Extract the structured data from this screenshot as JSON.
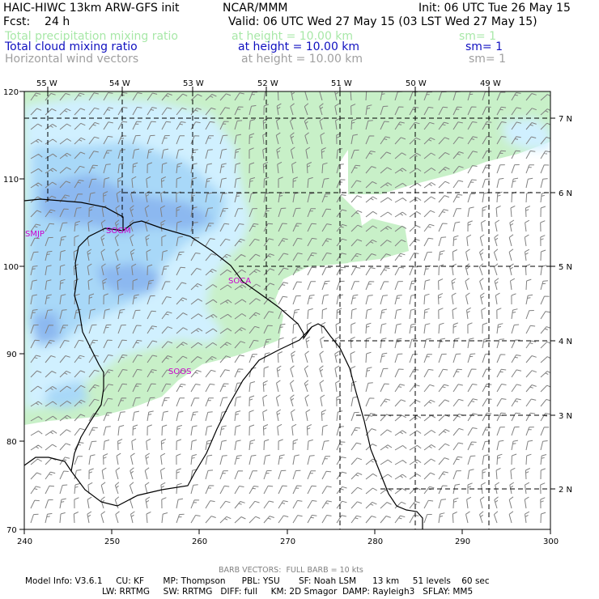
{
  "header": {
    "model": "HAIC-HIWC 13km ARW-GFS init",
    "org": "NCAR/MMM",
    "init": "Init: 06 UTC Tue 26 May 15",
    "fcst": "Fcst:    24 h",
    "valid": "Valid: 06 UTC Wed 27 May 15 (03 LST Wed 27 May 15)"
  },
  "fields": [
    {
      "name": "Total precipitation mixing ratio",
      "height": "at height = 10.00 km",
      "sm": "sm= 1",
      "color": "#a8e8a8"
    },
    {
      "name": "Total cloud mixing ratio",
      "height": "at height = 10.00 km",
      "sm": "sm= 1",
      "color": "#1010c0"
    },
    {
      "name": "Horizontal wind vectors",
      "height": "at height = 10.00 km",
      "sm": "sm= 1",
      "color": "#a0a0a0"
    }
  ],
  "map": {
    "top_lon_labels": [
      "55 W",
      "54 W",
      "53 W",
      "52 W",
      "51 W",
      "50 W",
      "49 W"
    ],
    "right_lat_labels": [
      "7 N",
      "6 N",
      "5 N",
      "4 N",
      "3 N",
      "2 N"
    ],
    "bottom_axis": [
      "240",
      "250",
      "260",
      "270",
      "280",
      "290",
      "300"
    ],
    "left_axis": [
      "120",
      "110",
      "100",
      "90",
      "80",
      "70"
    ],
    "stations": [
      "SMJP",
      "SOGM",
      "SOCA",
      "SOOS"
    ],
    "colors": {
      "precip": "#c8f0c8",
      "cloud_light": "#d0f0ff",
      "cloud_mid": "#a8d8f8",
      "cloud_dark": "#8cb8f0",
      "barb": "#808080",
      "station": "#cc00cc"
    }
  },
  "footer": {
    "barb": "BARB VECTORS:  FULL BARB = 10 kts",
    "line1": "Model Info: V3.6.1     CU: KF       MP: Thompson      PBL: YSU       SF: Noah LSM      13 km     51 levels    60 sec",
    "line2": "LW: RRTMG     SW: RRTMG   DIFF: full     KM: 2D Smagor  DAMP: Rayleigh3   SFLAY: MM5"
  }
}
